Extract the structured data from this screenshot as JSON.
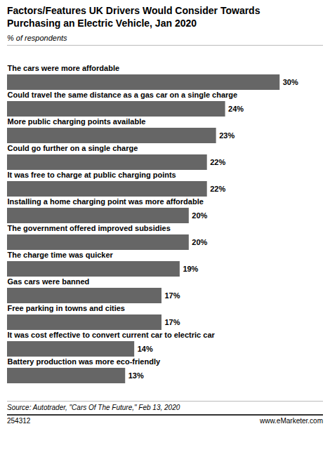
{
  "chart_data": {
    "type": "bar",
    "orientation": "horizontal",
    "title": "Factors/Features UK Drivers Would Consider Towards\nPurchasing an Electric Vehicle, Jan 2020",
    "subtitle": "% of respondents",
    "categories": [
      "The cars were more affordable",
      "Could travel the same distance as a gas car on a single charge",
      "More public charging points available",
      "Could go further on a single charge",
      "It was free to charge at public charging points",
      "Installing a home charging point was more affordable",
      "The government offered improved subsidies",
      "The charge time was quicker",
      "Gas cars were banned",
      "Free parking in towns and cities",
      "It was cost effective to convert current car to electric car",
      "Battery production was more eco-friendly"
    ],
    "values": [
      30,
      24,
      23,
      22,
      22,
      20,
      20,
      19,
      17,
      17,
      14,
      13
    ],
    "value_labels": [
      "30%",
      "24%",
      "23%",
      "22%",
      "22%",
      "20%",
      "20%",
      "19%",
      "17%",
      "17%",
      "14%",
      "13%"
    ],
    "data_labels": true,
    "color": "#666666",
    "xlim": [
      0,
      34
    ],
    "tick_labels": false,
    "grid": false,
    "source": "Source: Autotrader, \"Cars Of The Future,\" Feb 13, 2020",
    "annotations": [
      "254312",
      "www.eMarketer.com"
    ]
  }
}
